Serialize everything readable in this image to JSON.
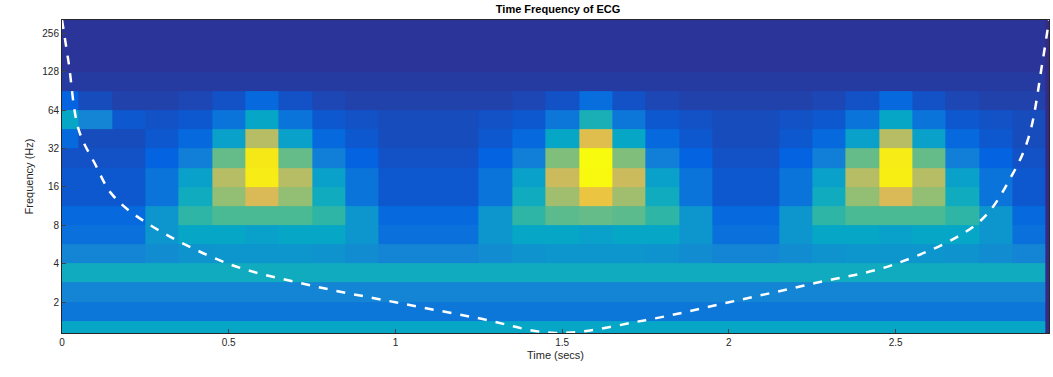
{
  "chart_data": {
    "type": "heatmap",
    "title": "Time Frequency of ECG",
    "x_label": "Time (secs)",
    "y_label": "Frequency (Hz)",
    "log": "y",
    "grid": false,
    "xlim": [
      0,
      2.96
    ],
    "xticks": [
      0,
      0.5,
      1,
      1.5,
      2,
      2.5
    ],
    "ylim": [
      1.15,
      325
    ],
    "yticks": [
      2,
      4,
      8,
      16,
      32,
      64,
      128,
      256
    ],
    "zlim": [
      0,
      1
    ],
    "x": [
      0,
      0.1,
      0.2,
      0.3,
      0.4,
      0.5,
      0.6,
      0.7,
      0.8,
      0.9,
      1,
      1.1,
      1.2,
      1.3,
      1.4,
      1.5,
      1.6,
      1.7,
      1.8,
      1.9,
      2,
      2.1,
      2.2,
      2.3,
      2.4,
      2.5,
      2.6,
      2.7,
      2.8,
      2.9
    ],
    "y": [
      1.2,
      1.7,
      2.4,
      3.4,
      4.8,
      6.8,
      9.6,
      13.5,
      19,
      27,
      38,
      54,
      76,
      108,
      152,
      215,
      304
    ],
    "cells": [
      [
        0.3,
        0.3,
        0.3,
        0.3,
        0.3,
        0.3,
        0.3,
        0.3,
        0.3,
        0.3,
        0.3,
        0.3,
        0.3,
        0.3,
        0.3,
        0.3,
        0.3,
        0.3,
        0.3,
        0.3,
        0.3,
        0.3,
        0.3,
        0.3,
        0.3,
        0.3,
        0.3,
        0.3,
        0.3,
        0.3
      ],
      [
        0.16,
        0.16,
        0.16,
        0.16,
        0.16,
        0.16,
        0.16,
        0.16,
        0.16,
        0.16,
        0.16,
        0.16,
        0.16,
        0.16,
        0.16,
        0.16,
        0.16,
        0.16,
        0.16,
        0.16,
        0.16,
        0.16,
        0.16,
        0.16,
        0.16,
        0.16,
        0.16,
        0.16,
        0.16,
        0.16
      ],
      [
        0.2,
        0.2,
        0.2,
        0.2,
        0.2,
        0.2,
        0.2,
        0.2,
        0.2,
        0.2,
        0.2,
        0.2,
        0.2,
        0.2,
        0.2,
        0.2,
        0.2,
        0.2,
        0.2,
        0.2,
        0.2,
        0.2,
        0.2,
        0.2,
        0.2,
        0.2,
        0.2,
        0.2,
        0.2,
        0.2
      ],
      [
        0.32,
        0.32,
        0.32,
        0.32,
        0.32,
        0.32,
        0.32,
        0.32,
        0.32,
        0.32,
        0.32,
        0.32,
        0.32,
        0.32,
        0.32,
        0.32,
        0.32,
        0.32,
        0.32,
        0.32,
        0.32,
        0.32,
        0.32,
        0.32,
        0.32,
        0.32,
        0.32,
        0.32,
        0.32,
        0.32
      ],
      [
        0.2,
        0.2,
        0.2,
        0.22,
        0.24,
        0.25,
        0.25,
        0.25,
        0.24,
        0.22,
        0.2,
        0.2,
        0.2,
        0.22,
        0.24,
        0.25,
        0.25,
        0.25,
        0.24,
        0.22,
        0.2,
        0.2,
        0.22,
        0.24,
        0.25,
        0.25,
        0.25,
        0.24,
        0.22,
        0.2
      ],
      [
        0.14,
        0.14,
        0.14,
        0.25,
        0.3,
        0.3,
        0.28,
        0.3,
        0.3,
        0.25,
        0.14,
        0.14,
        0.14,
        0.25,
        0.3,
        0.3,
        0.28,
        0.3,
        0.3,
        0.25,
        0.14,
        0.14,
        0.25,
        0.3,
        0.3,
        0.28,
        0.3,
        0.3,
        0.25,
        0.14
      ],
      [
        0.12,
        0.12,
        0.12,
        0.25,
        0.38,
        0.42,
        0.42,
        0.42,
        0.38,
        0.25,
        0.12,
        0.12,
        0.12,
        0.25,
        0.38,
        0.44,
        0.45,
        0.44,
        0.38,
        0.25,
        0.12,
        0.12,
        0.25,
        0.38,
        0.42,
        0.42,
        0.42,
        0.38,
        0.25,
        0.12
      ],
      [
        0.08,
        0.08,
        0.08,
        0.15,
        0.32,
        0.5,
        0.6,
        0.5,
        0.32,
        0.15,
        0.08,
        0.08,
        0.08,
        0.15,
        0.32,
        0.52,
        0.65,
        0.52,
        0.32,
        0.15,
        0.08,
        0.08,
        0.15,
        0.32,
        0.5,
        0.6,
        0.5,
        0.32,
        0.15,
        0.08
      ],
      [
        0.08,
        0.08,
        0.08,
        0.15,
        0.28,
        0.55,
        0.88,
        0.55,
        0.28,
        0.15,
        0.08,
        0.08,
        0.08,
        0.15,
        0.28,
        0.58,
        0.98,
        0.58,
        0.28,
        0.15,
        0.08,
        0.08,
        0.15,
        0.28,
        0.55,
        0.9,
        0.55,
        0.28,
        0.15,
        0.08
      ],
      [
        0.07,
        0.07,
        0.07,
        0.1,
        0.18,
        0.45,
        0.85,
        0.45,
        0.18,
        0.1,
        0.07,
        0.07,
        0.07,
        0.1,
        0.18,
        0.48,
        1.0,
        0.48,
        0.18,
        0.1,
        0.07,
        0.07,
        0.1,
        0.18,
        0.45,
        0.88,
        0.45,
        0.18,
        0.1,
        0.07
      ],
      [
        0.12,
        0.06,
        0.06,
        0.08,
        0.12,
        0.28,
        0.55,
        0.28,
        0.12,
        0.08,
        0.06,
        0.06,
        0.06,
        0.08,
        0.12,
        0.3,
        0.62,
        0.3,
        0.12,
        0.08,
        0.06,
        0.06,
        0.08,
        0.12,
        0.28,
        0.55,
        0.28,
        0.12,
        0.08,
        0.06
      ],
      [
        0.3,
        0.2,
        0.08,
        0.07,
        0.08,
        0.15,
        0.3,
        0.15,
        0.08,
        0.07,
        0.06,
        0.06,
        0.06,
        0.07,
        0.08,
        0.16,
        0.34,
        0.16,
        0.08,
        0.07,
        0.06,
        0.06,
        0.07,
        0.08,
        0.15,
        0.3,
        0.15,
        0.08,
        0.07,
        0.06
      ],
      [
        0.1,
        0.06,
        0.04,
        0.04,
        0.05,
        0.07,
        0.12,
        0.07,
        0.05,
        0.04,
        0.04,
        0.04,
        0.04,
        0.04,
        0.05,
        0.07,
        0.13,
        0.07,
        0.05,
        0.04,
        0.04,
        0.04,
        0.04,
        0.05,
        0.07,
        0.12,
        0.07,
        0.05,
        0.04,
        0.04
      ],
      [
        0.03,
        0.03,
        0.03,
        0.03,
        0.03,
        0.03,
        0.03,
        0.03,
        0.03,
        0.03,
        0.03,
        0.03,
        0.03,
        0.03,
        0.03,
        0.03,
        0.03,
        0.03,
        0.03,
        0.03,
        0.03,
        0.03,
        0.03,
        0.03,
        0.03,
        0.03,
        0.03,
        0.03,
        0.03,
        0.03
      ],
      [
        0.02,
        0.02,
        0.02,
        0.02,
        0.02,
        0.02,
        0.02,
        0.02,
        0.02,
        0.02,
        0.02,
        0.02,
        0.02,
        0.02,
        0.02,
        0.02,
        0.02,
        0.02,
        0.02,
        0.02,
        0.02,
        0.02,
        0.02,
        0.02,
        0.02,
        0.02,
        0.02,
        0.02,
        0.02,
        0.02
      ],
      [
        0.02,
        0.02,
        0.02,
        0.02,
        0.02,
        0.02,
        0.02,
        0.02,
        0.02,
        0.02,
        0.02,
        0.02,
        0.02,
        0.02,
        0.02,
        0.02,
        0.02,
        0.02,
        0.02,
        0.02,
        0.02,
        0.02,
        0.02,
        0.02,
        0.02,
        0.02,
        0.02,
        0.02,
        0.02,
        0.02
      ],
      [
        0.02,
        0.02,
        0.02,
        0.02,
        0.02,
        0.02,
        0.02,
        0.02,
        0.02,
        0.02,
        0.02,
        0.02,
        0.02,
        0.02,
        0.02,
        0.02,
        0.02,
        0.02,
        0.02,
        0.02,
        0.02,
        0.02,
        0.02,
        0.02,
        0.02,
        0.02,
        0.02,
        0.02,
        0.02,
        0.02
      ]
    ],
    "cone": {
      "x": [
        0,
        0.02,
        0.05,
        0.1,
        0.15,
        0.25,
        0.5,
        0.75,
        1,
        1.25,
        1.48,
        1.75,
        2,
        2.25,
        2.5,
        2.75,
        2.85,
        2.9,
        2.94,
        2.96
      ],
      "y": [
        325,
        150,
        45,
        24,
        14,
        8.5,
        4,
        2.7,
        2,
        1.5,
        1.15,
        1.45,
        2,
        2.8,
        4,
        8.5,
        20,
        40,
        150,
        325
      ],
      "color": "#ffffff",
      "line_style": "dash"
    }
  }
}
